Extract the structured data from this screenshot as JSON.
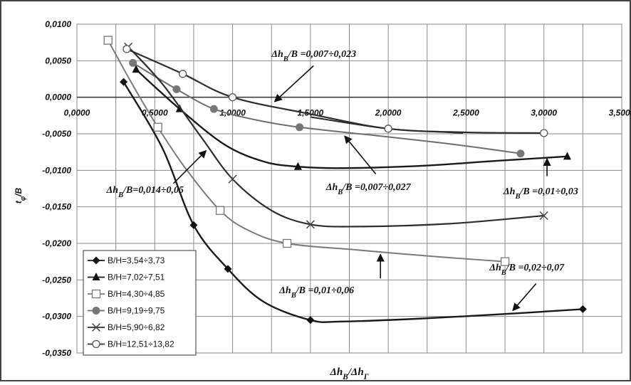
{
  "chart_data": {
    "type": "line",
    "xlabel": "Δh_B/Δh_Г",
    "ylabel": "t_φ/B",
    "xlim": [
      0,
      3.5
    ],
    "ylim": [
      -0.035,
      0.01
    ],
    "x_ticks": [
      {
        "v": 0,
        "label": "0,0000"
      },
      {
        "v": 0.5,
        "label": "0,5000"
      },
      {
        "v": 1.0,
        "label": "1,0000"
      },
      {
        "v": 1.5,
        "label": "1,5000"
      },
      {
        "v": 2.0,
        "label": "2,0000"
      },
      {
        "v": 2.5,
        "label": "2,5000"
      },
      {
        "v": 3.0,
        "label": "3,0000"
      },
      {
        "v": 3.5,
        "label": "3,5000"
      }
    ],
    "y_ticks": [
      {
        "v": 0.01,
        "label": "0,0100"
      },
      {
        "v": 0.005,
        "label": "0,0050"
      },
      {
        "v": 0.0,
        "label": "0,0000"
      },
      {
        "v": -0.005,
        "label": "-0,0050"
      },
      {
        "v": -0.01,
        "label": "-0,0100"
      },
      {
        "v": -0.015,
        "label": "-0,0150"
      },
      {
        "v": -0.02,
        "label": "-0,0200"
      },
      {
        "v": -0.025,
        "label": "-0,0250"
      },
      {
        "v": -0.03,
        "label": "-0,0300"
      },
      {
        "v": -0.035,
        "label": "-0,0350"
      }
    ],
    "grid": true,
    "legend_position": "bottom-left",
    "series": [
      {
        "name": "B/H=3,54÷3,73",
        "marker": "diamond",
        "points": [
          [
            0.3,
            0.0021
          ],
          [
            0.75,
            -0.0175
          ],
          [
            0.97,
            -0.0235
          ],
          [
            1.5,
            -0.0305
          ],
          [
            3.25,
            -0.029
          ]
        ],
        "curve": [
          [
            0.3,
            0.0021
          ],
          [
            0.55,
            -0.007
          ],
          [
            0.75,
            -0.0175
          ],
          [
            0.97,
            -0.0235
          ],
          [
            1.2,
            -0.028
          ],
          [
            1.5,
            -0.0305
          ],
          [
            1.7,
            -0.0307
          ],
          [
            2.2,
            -0.0303
          ],
          [
            2.8,
            -0.0296
          ],
          [
            3.25,
            -0.029
          ]
        ]
      },
      {
        "name": "B/H=7,02÷7,51",
        "marker": "triangle",
        "points": [
          [
            0.38,
            0.0038
          ],
          [
            0.66,
            -0.0016
          ],
          [
            1.42,
            -0.0095
          ],
          [
            3.15,
            -0.0081
          ]
        ],
        "curve": [
          [
            0.38,
            0.0038
          ],
          [
            0.66,
            -0.0016
          ],
          [
            0.95,
            -0.0065
          ],
          [
            1.2,
            -0.0088
          ],
          [
            1.42,
            -0.0095
          ],
          [
            1.7,
            -0.0097
          ],
          [
            2.2,
            -0.0094
          ],
          [
            2.7,
            -0.0087
          ],
          [
            3.15,
            -0.0081
          ]
        ]
      },
      {
        "name": "B/H=4,30÷4,85",
        "marker": "square",
        "points": [
          [
            0.2,
            0.0078
          ],
          [
            0.52,
            -0.0041
          ],
          [
            0.92,
            -0.0155
          ],
          [
            1.35,
            -0.02
          ],
          [
            2.75,
            -0.0225
          ]
        ],
        "curve": [
          [
            0.2,
            0.0078
          ],
          [
            0.35,
            0.002
          ],
          [
            0.52,
            -0.0041
          ],
          [
            0.7,
            -0.0098
          ],
          [
            0.92,
            -0.0155
          ],
          [
            1.1,
            -0.0182
          ],
          [
            1.35,
            -0.02
          ],
          [
            1.8,
            -0.0209
          ],
          [
            2.3,
            -0.0218
          ],
          [
            2.75,
            -0.0225
          ]
        ]
      },
      {
        "name": "B/H=9,19÷9,75",
        "marker": "circle-filled",
        "points": [
          [
            0.36,
            0.0047
          ],
          [
            0.64,
            0.0011
          ],
          [
            0.88,
            -0.0016
          ],
          [
            1.43,
            -0.0041
          ],
          [
            2.85,
            -0.0077
          ]
        ],
        "curve": [
          [
            0.36,
            0.0047
          ],
          [
            0.64,
            0.0011
          ],
          [
            0.88,
            -0.0016
          ],
          [
            1.15,
            -0.0031
          ],
          [
            1.43,
            -0.0041
          ],
          [
            1.9,
            -0.0052
          ],
          [
            2.4,
            -0.0064
          ],
          [
            2.85,
            -0.0077
          ]
        ]
      },
      {
        "name": "B/H=5,90÷6,82",
        "marker": "x",
        "points": [
          [
            0.33,
            0.0069
          ],
          [
            1.0,
            -0.0112
          ],
          [
            1.5,
            -0.0174
          ],
          [
            3.0,
            -0.0162
          ]
        ],
        "curve": [
          [
            0.33,
            0.0069
          ],
          [
            0.55,
            0.0018
          ],
          [
            0.8,
            -0.0055
          ],
          [
            1.0,
            -0.0112
          ],
          [
            1.25,
            -0.0155
          ],
          [
            1.5,
            -0.0174
          ],
          [
            1.8,
            -0.0177
          ],
          [
            2.4,
            -0.0173
          ],
          [
            3.0,
            -0.0162
          ]
        ]
      },
      {
        "name": "B/H=12,51÷13,82",
        "marker": "circle-open",
        "points": [
          [
            0.32,
            0.0066
          ],
          [
            0.68,
            0.0032
          ],
          [
            1.0,
            0.0
          ],
          [
            2.0,
            -0.0043
          ],
          [
            3.0,
            -0.0049
          ]
        ],
        "curve": [
          [
            0.32,
            0.0066
          ],
          [
            0.68,
            0.0032
          ],
          [
            1.0,
            0.0
          ],
          [
            1.5,
            -0.0023
          ],
          [
            2.0,
            -0.0043
          ],
          [
            2.5,
            -0.0048
          ],
          [
            3.0,
            -0.0049
          ]
        ]
      }
    ],
    "extra_segment": [
      [
        1.5,
        -0.0027
      ],
      [
        2.0,
        -0.0043
      ],
      [
        2.48,
        -0.0049
      ]
    ],
    "annotations": [
      {
        "text": "Δh_B/B =0,007÷0,023",
        "at": [
          1.25,
          0.0055
        ],
        "arrow_from": [
          1.52,
          0.0043
        ],
        "arrow_to": [
          1.27,
          -0.0006
        ]
      },
      {
        "text": "Δh_B/B =0,007÷0,027",
        "at": [
          1.6,
          -0.0127
        ],
        "arrow_from": [
          1.92,
          -0.0105
        ],
        "arrow_to": [
          1.72,
          -0.0053
        ]
      },
      {
        "text": "Δh_B/B =0,01÷0,03",
        "at": [
          2.74,
          -0.0133
        ],
        "arrow_from": [
          3.02,
          -0.0108
        ],
        "arrow_to": [
          3.02,
          -0.0084
        ]
      },
      {
        "text": "Δh_B/B=0,014÷0,05",
        "at": [
          0.19,
          -0.0131
        ],
        "arrow_from": [
          0.62,
          -0.0118
        ],
        "arrow_to": [
          0.83,
          -0.0073
        ]
      },
      {
        "text": "Δh_B/B =0,01÷0,06",
        "at": [
          1.3,
          -0.0268
        ],
        "arrow_from": [
          1.95,
          -0.0248
        ],
        "arrow_to": [
          1.95,
          -0.0215
        ]
      },
      {
        "text": "Δh_B/B =0,02÷0,07",
        "at": [
          2.65,
          -0.0237
        ],
        "arrow_from": [
          2.95,
          -0.0255
        ],
        "arrow_to": [
          2.8,
          -0.0292
        ]
      }
    ]
  }
}
